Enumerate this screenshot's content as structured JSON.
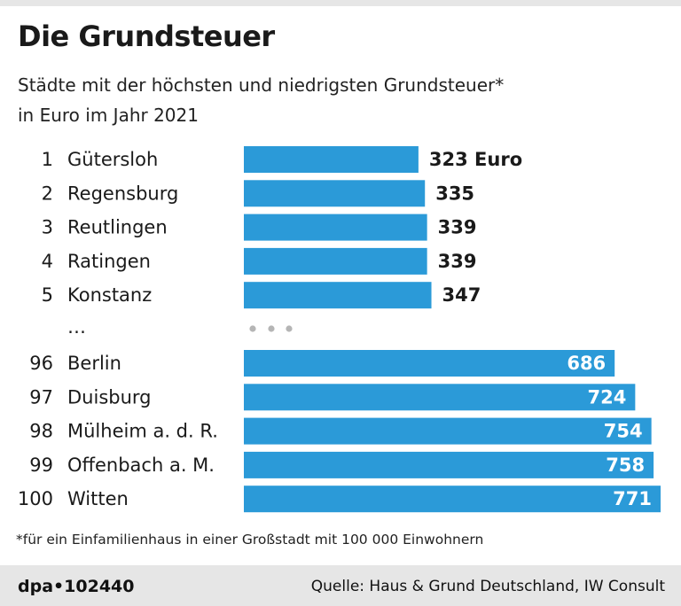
{
  "header": {
    "title": "Die Grundsteuer",
    "subtitle_line1": "Städte mit der höchsten und niedrigsten Grundsteuer*",
    "subtitle_line2": "in Euro im Jahr 2021"
  },
  "chart_data": {
    "type": "bar",
    "orientation": "horizontal",
    "title": "Die Grundsteuer",
    "subtitle": "Städte mit der höchsten und niedrigsten Grundsteuer* in Euro im Jahr 2021",
    "unit": "Euro",
    "xlim": [
      0,
      771
    ],
    "grid": false,
    "bar_color": "#2b9ad8",
    "gap_symbol": "…",
    "top_group": [
      {
        "rank": "1",
        "city": "Gütersloh",
        "value": 323,
        "label": "323 Euro"
      },
      {
        "rank": "2",
        "city": "Regensburg",
        "value": 335,
        "label": "335"
      },
      {
        "rank": "3",
        "city": "Reutlingen",
        "value": 339,
        "label": "339"
      },
      {
        "rank": "4",
        "city": "Ratingen",
        "value": 339,
        "label": "339"
      },
      {
        "rank": "5",
        "city": "Konstanz",
        "value": 347,
        "label": "347"
      }
    ],
    "bottom_group": [
      {
        "rank": "96",
        "city": "Berlin",
        "value": 686,
        "label": "686"
      },
      {
        "rank": "97",
        "city": "Duisburg",
        "value": 724,
        "label": "724"
      },
      {
        "rank": "98",
        "city": "Mülheim a. d. R.",
        "value": 754,
        "label": "754"
      },
      {
        "rank": "99",
        "city": "Offenbach a. M.",
        "value": 758,
        "label": "758"
      },
      {
        "rank": "100",
        "city": "Witten",
        "value": 771,
        "label": "771"
      }
    ]
  },
  "footnote": "*für ein Einfamilienhaus in einer Großstadt mit 100 000 Einwohnern",
  "footer": {
    "credit": "dpa•102440",
    "source": "Quelle: Haus & Grund Deutschland, IW Consult"
  },
  "colors": {
    "bar": "#2b9ad8",
    "dots": "#b5b5b5",
    "footer_bg": "#e6e6e6"
  }
}
